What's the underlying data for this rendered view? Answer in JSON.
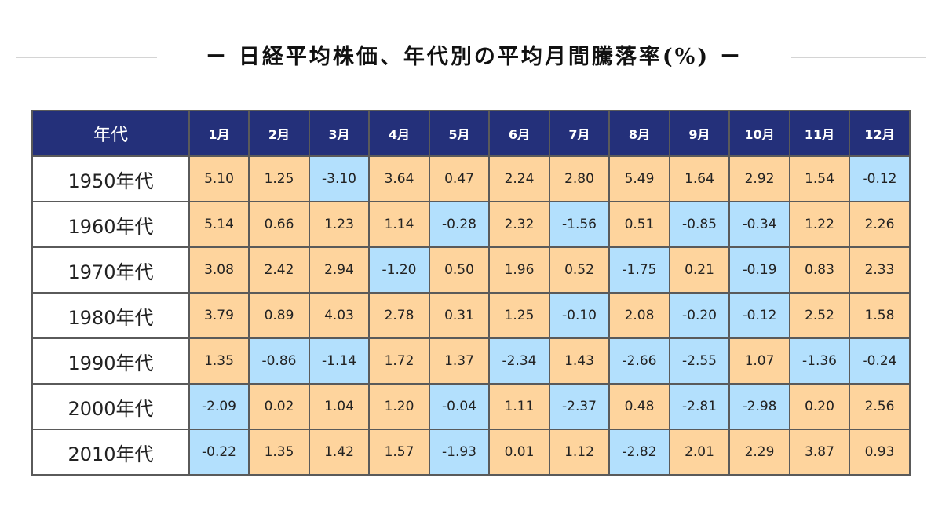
{
  "title": "－ 日経平均株価、年代別の平均月間騰落率(%) －",
  "colors": {
    "header_bg": "#24307a",
    "header_text": "#ffffff",
    "positive_cell": "#fed49d",
    "negative_cell": "#b3e0fd",
    "border": "#5a5a5a"
  },
  "chart_data": {
    "type": "table",
    "title": "－ 日経平均株価、年代別の平均月間騰落率(%) －",
    "corner_label": "年代",
    "columns": [
      "1月",
      "2月",
      "3月",
      "4月",
      "5月",
      "6月",
      "7月",
      "8月",
      "9月",
      "10月",
      "11月",
      "12月"
    ],
    "rows": [
      {
        "label": "1950年代",
        "values": [
          "5.10",
          "1.25",
          "-3.10",
          "3.64",
          "0.47",
          "2.24",
          "2.80",
          "5.49",
          "1.64",
          "2.92",
          "1.54",
          "-0.12"
        ]
      },
      {
        "label": "1960年代",
        "values": [
          "5.14",
          "0.66",
          "1.23",
          "1.14",
          "-0.28",
          "2.32",
          "-1.56",
          "0.51",
          "-0.85",
          "-0.34",
          "1.22",
          "2.26"
        ]
      },
      {
        "label": "1970年代",
        "values": [
          "3.08",
          "2.42",
          "2.94",
          "-1.20",
          "0.50",
          "1.96",
          "0.52",
          "-1.75",
          "0.21",
          "-0.19",
          "0.83",
          "2.33"
        ]
      },
      {
        "label": "1980年代",
        "values": [
          "3.79",
          "0.89",
          "4.03",
          "2.78",
          "0.31",
          "1.25",
          "-0.10",
          "2.08",
          "-0.20",
          "-0.12",
          "2.52",
          "1.58"
        ]
      },
      {
        "label": "1990年代",
        "values": [
          "1.35",
          "-0.86",
          "-1.14",
          "1.72",
          "1.37",
          "-2.34",
          "1.43",
          "-2.66",
          "-2.55",
          "1.07",
          "-1.36",
          "-0.24"
        ]
      },
      {
        "label": "2000年代",
        "values": [
          "-2.09",
          "0.02",
          "1.04",
          "1.20",
          "-0.04",
          "1.11",
          "-2.37",
          "0.48",
          "-2.81",
          "-2.98",
          "0.20",
          "2.56"
        ]
      },
      {
        "label": "2010年代",
        "values": [
          "-0.22",
          "1.35",
          "1.42",
          "1.57",
          "-1.93",
          "0.01",
          "1.12",
          "-2.82",
          "2.01",
          "2.29",
          "3.87",
          "0.93"
        ]
      }
    ]
  }
}
